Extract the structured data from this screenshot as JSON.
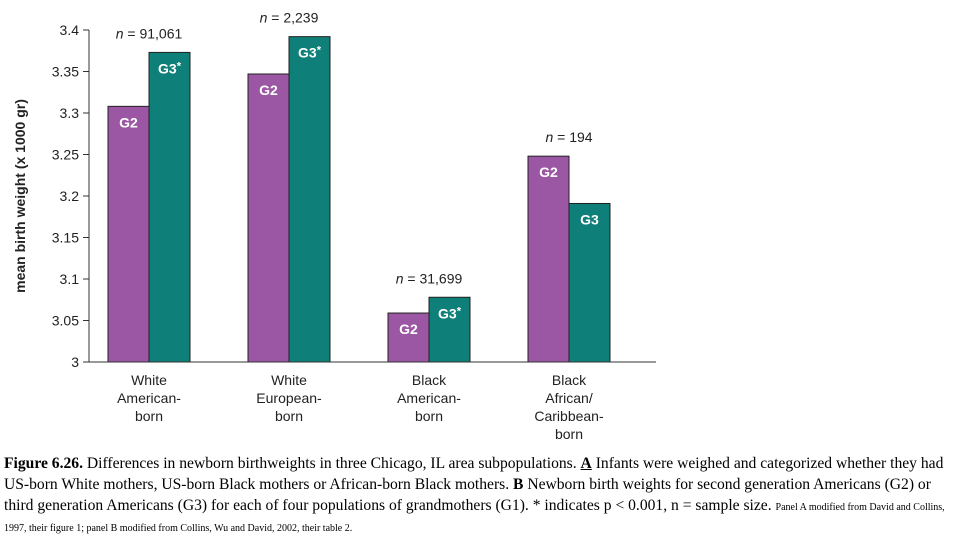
{
  "chart_data": {
    "type": "bar",
    "ylabel": "mean birth weight (x 1000 gr)",
    "ylim": [
      3,
      3.4
    ],
    "yticks": [
      "3",
      "3.05",
      "3.1",
      "3.15",
      "3.2",
      "3.25",
      "3.3",
      "3.35",
      "3.4"
    ],
    "categories": [
      [
        "White",
        "American-",
        "born"
      ],
      [
        "White",
        "European-",
        "born"
      ],
      [
        "Black",
        "American-",
        "born"
      ],
      [
        "Black",
        "African/",
        "Caribbean-",
        "born"
      ]
    ],
    "series": [
      {
        "name": "G2",
        "color": "#9b57a4",
        "values": [
          3.308,
          3.347,
          3.059,
          3.248
        ]
      },
      {
        "name": "G3",
        "color": "#0f7f79",
        "values": [
          3.373,
          3.392,
          3.078,
          3.191
        ]
      }
    ],
    "bar_labels": [
      [
        "G2",
        "G3*"
      ],
      [
        "G2",
        "G3*"
      ],
      [
        "G2",
        "G3*"
      ],
      [
        "G2",
        "G3"
      ]
    ],
    "sample_sizes": [
      "91,061",
      "2,239",
      "31,699",
      "194"
    ],
    "n_prefix": "n",
    "n_eq": " = "
  },
  "caption": {
    "title": "Figure 6.26.",
    "text": " Differences in newborn birthweights in three Chicago, IL area subpopulations. ",
    "a_label": "A",
    "a_text": " Infants were weighed and categorized whether they had US-born White mothers, US-born Black mothers or African-born Black mothers. ",
    "b_label": "B",
    "b_text": " Newborn birth weights for second generation Americans (G2) or third generation Americans (G3) for each of four populations of grandmothers (G1). * indicates p < 0.001, n = sample size. ",
    "source": "Panel A modified from David and Collins, 1997, their figure 1; panel B modified from Collins, Wu and David, 2002, their table 2."
  }
}
